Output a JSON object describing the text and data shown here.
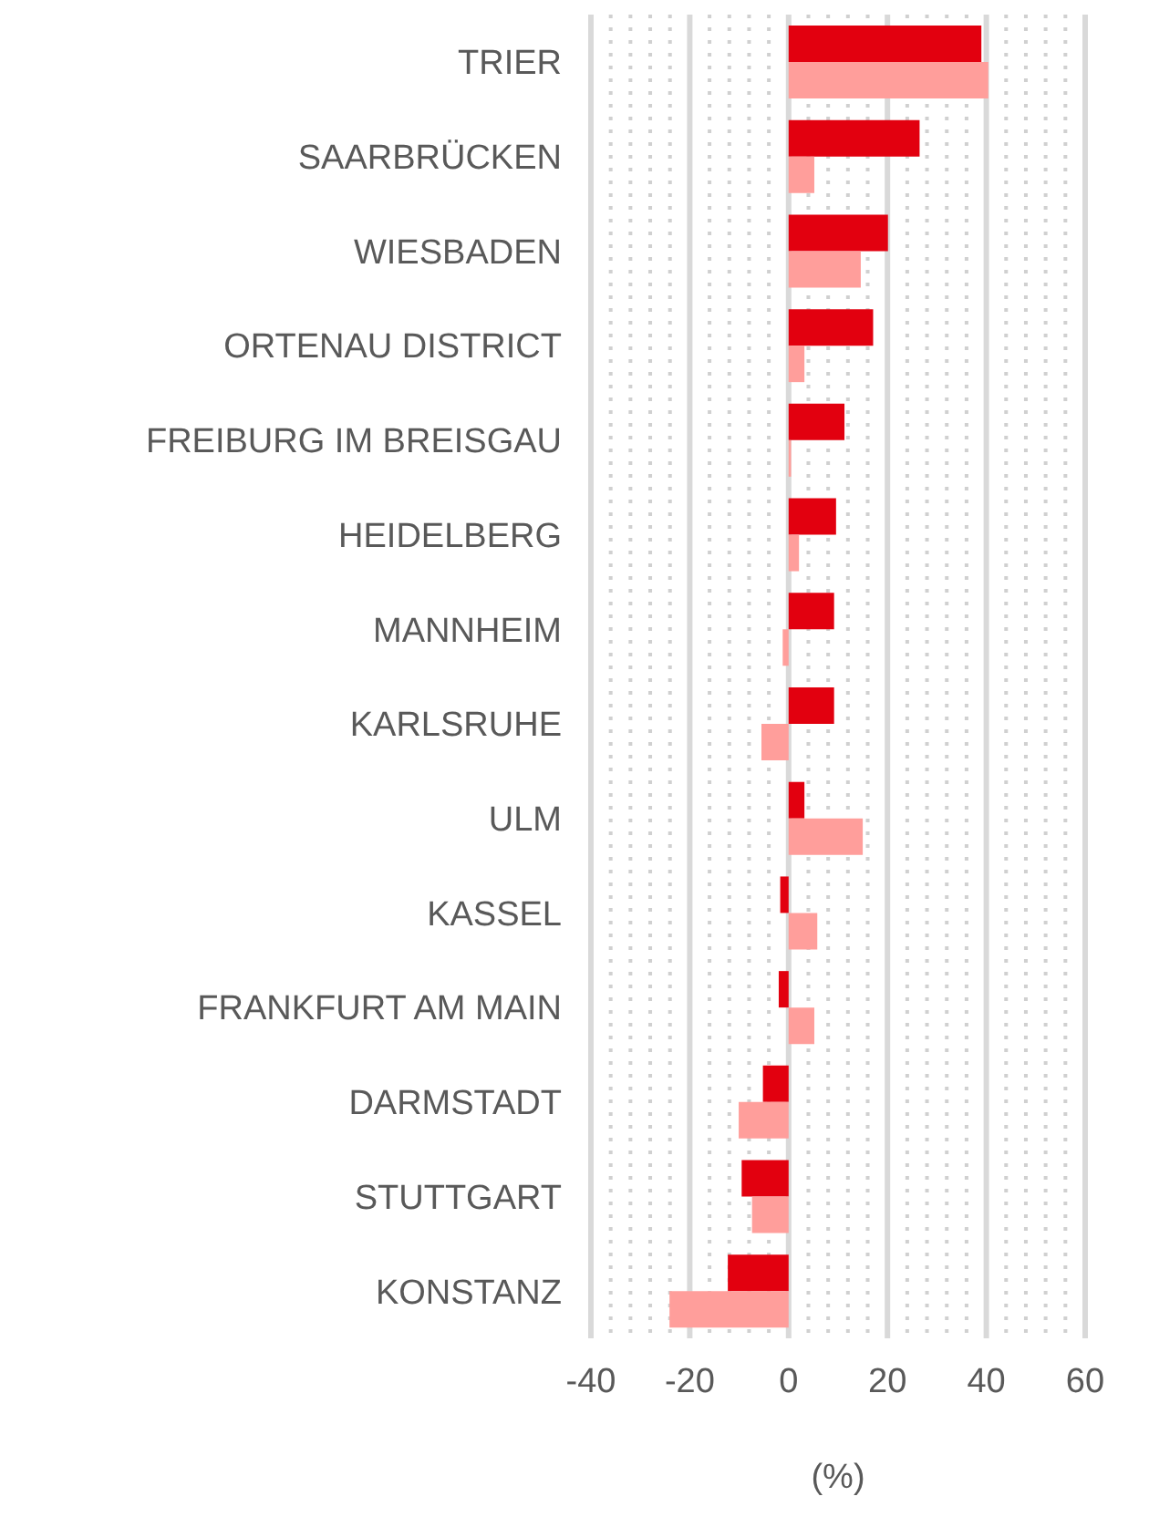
{
  "chart_data": {
    "type": "bar",
    "orientation": "horizontal",
    "xlabel": "(%)",
    "categories": [
      "TRIER",
      "SAARBRÜCKEN",
      "WIESBADEN",
      "ORTENAU DISTRICT",
      "FREIBURG IM BREISGAU",
      "HEIDELBERG",
      "MANNHEIM",
      "KARLSRUHE",
      "ULM",
      "KASSEL",
      "FRANKFURT AM MAIN",
      "DARMSTADT",
      "STUTTGART",
      "KONSTANZ"
    ],
    "series": [
      {
        "color": "#e2000f",
        "values": [
          39.0,
          26.5,
          20.1,
          17.1,
          11.3,
          9.6,
          9.2,
          9.2,
          3.2,
          -1.7,
          -2.0,
          -5.2,
          -9.5,
          -12.3
        ]
      },
      {
        "color": "#ff9e9b",
        "values": [
          40.4,
          5.2,
          14.6,
          3.2,
          0.5,
          2.1,
          -1.2,
          -5.5,
          15.0,
          5.8,
          5.2,
          -10.1,
          -7.4,
          -24.1
        ]
      }
    ],
    "xlim": [
      -40,
      60
    ],
    "xticks": [
      -40,
      {
        "value": -36,
        "label": null
      },
      {
        "value": -32,
        "label": null
      },
      {
        "value": -28,
        "label": null
      },
      {
        "value": -24,
        "label": null
      },
      -20,
      {
        "value": -16,
        "label": null
      },
      {
        "value": -12,
        "label": null
      },
      {
        "value": -8,
        "label": null
      },
      {
        "value": -4,
        "label": null
      },
      0,
      {
        "value": 4,
        "label": null
      },
      {
        "value": 8,
        "label": null
      },
      {
        "value": 12,
        "label": null
      },
      {
        "value": 16,
        "label": null
      },
      20,
      {
        "value": 24,
        "label": null
      },
      {
        "value": 28,
        "label": null
      },
      {
        "value": 32,
        "label": null
      },
      {
        "value": 36,
        "label": null
      },
      40,
      {
        "value": 44,
        "label": null
      },
      {
        "value": 48,
        "label": null
      },
      {
        "value": 52,
        "label": null
      },
      {
        "value": 56,
        "label": null
      },
      60
    ],
    "grid": "x",
    "legend": false
  }
}
